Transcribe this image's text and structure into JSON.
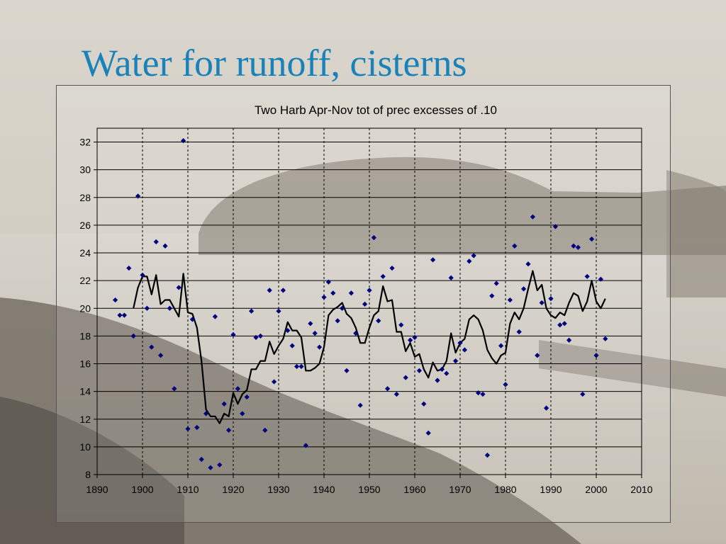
{
  "slide": {
    "title": "Water for runoff, cisterns"
  },
  "colors": {
    "title": "#1a82b8",
    "points": "#000080",
    "line": "#000000",
    "gridlines": "#000000"
  },
  "chart_data": {
    "type": "scatter",
    "title": "Two Harb Apr-Nov tot of prec excesses of .10",
    "xlabel": "",
    "ylabel": "",
    "xlim": [
      1890,
      2010
    ],
    "ylim": [
      8,
      33
    ],
    "xticks": [
      1890,
      1900,
      1910,
      1920,
      1930,
      1940,
      1950,
      1960,
      1970,
      1980,
      1990,
      2000,
      2010
    ],
    "yticks": [
      8,
      10,
      12,
      14,
      16,
      18,
      20,
      22,
      24,
      26,
      28,
      30,
      32
    ],
    "grid": {
      "horizontal": "solid",
      "vertical": "dashed"
    },
    "legend": "none",
    "series": [
      {
        "kind": "scatter",
        "marker": "diamond",
        "points": [
          [
            1894,
            20.6
          ],
          [
            1895,
            19.5
          ],
          [
            1896,
            19.5
          ],
          [
            1897,
            22.9
          ],
          [
            1898,
            18.0
          ],
          [
            1899,
            28.1
          ],
          [
            1900,
            22.4
          ],
          [
            1901,
            20.0
          ],
          [
            1902,
            17.2
          ],
          [
            1903,
            24.8
          ],
          [
            1904,
            16.6
          ],
          [
            1905,
            24.5
          ],
          [
            1906,
            20.0
          ],
          [
            1907,
            14.2
          ],
          [
            1908,
            21.5
          ],
          [
            1909,
            32.1
          ],
          [
            1910,
            11.3
          ],
          [
            1911,
            19.2
          ],
          [
            1912,
            11.4
          ],
          [
            1913,
            9.1
          ],
          [
            1914,
            12.4
          ],
          [
            1915,
            8.5
          ],
          [
            1916,
            19.4
          ],
          [
            1917,
            8.7
          ],
          [
            1918,
            13.1
          ],
          [
            1919,
            11.2
          ],
          [
            1920,
            18.1
          ],
          [
            1921,
            14.2
          ],
          [
            1922,
            12.4
          ],
          [
            1923,
            13.6
          ],
          [
            1924,
            19.8
          ],
          [
            1925,
            17.9
          ],
          [
            1926,
            18.0
          ],
          [
            1927,
            11.2
          ],
          [
            1928,
            21.3
          ],
          [
            1929,
            14.7
          ],
          [
            1930,
            19.8
          ],
          [
            1931,
            21.3
          ],
          [
            1932,
            18.4
          ],
          [
            1933,
            17.3
          ],
          [
            1934,
            15.8
          ],
          [
            1935,
            15.8
          ],
          [
            1936,
            10.1
          ],
          [
            1937,
            18.9
          ],
          [
            1938,
            18.2
          ],
          [
            1939,
            17.2
          ],
          [
            1940,
            20.8
          ],
          [
            1941,
            21.9
          ],
          [
            1942,
            21.1
          ],
          [
            1943,
            19.1
          ],
          [
            1944,
            20.0
          ],
          [
            1945,
            15.5
          ],
          [
            1946,
            21.1
          ],
          [
            1947,
            18.2
          ],
          [
            1948,
            13.0
          ],
          [
            1949,
            20.3
          ],
          [
            1950,
            21.3
          ],
          [
            1951,
            25.1
          ],
          [
            1952,
            19.1
          ],
          [
            1953,
            22.3
          ],
          [
            1954,
            14.2
          ],
          [
            1955,
            22.9
          ],
          [
            1956,
            13.8
          ],
          [
            1957,
            18.8
          ],
          [
            1958,
            15.0
          ],
          [
            1959,
            17.7
          ],
          [
            1960,
            17.9
          ],
          [
            1961,
            15.5
          ],
          [
            1962,
            13.1
          ],
          [
            1963,
            11.0
          ],
          [
            1964,
            23.5
          ],
          [
            1965,
            14.8
          ],
          [
            1966,
            15.6
          ],
          [
            1967,
            15.3
          ],
          [
            1968,
            22.2
          ],
          [
            1969,
            16.2
          ],
          [
            1970,
            17.5
          ],
          [
            1971,
            17.0
          ],
          [
            1972,
            23.4
          ],
          [
            1973,
            23.8
          ],
          [
            1974,
            13.9
          ],
          [
            1975,
            13.8
          ],
          [
            1976,
            9.4
          ],
          [
            1977,
            20.9
          ],
          [
            1978,
            21.8
          ],
          [
            1979,
            17.3
          ],
          [
            1980,
            14.5
          ],
          [
            1981,
            20.6
          ],
          [
            1982,
            24.5
          ],
          [
            1983,
            18.3
          ],
          [
            1984,
            21.4
          ],
          [
            1985,
            23.2
          ],
          [
            1986,
            26.6
          ],
          [
            1987,
            16.6
          ],
          [
            1988,
            20.4
          ],
          [
            1989,
            12.8
          ],
          [
            1990,
            20.7
          ],
          [
            1991,
            25.9
          ],
          [
            1992,
            18.8
          ],
          [
            1993,
            18.9
          ],
          [
            1994,
            17.7
          ],
          [
            1995,
            24.5
          ],
          [
            1996,
            24.4
          ],
          [
            1997,
            13.8
          ],
          [
            1998,
            22.3
          ],
          [
            1999,
            25.0
          ],
          [
            2000,
            16.6
          ],
          [
            2001,
            22.1
          ],
          [
            2002,
            17.8
          ]
        ]
      },
      {
        "kind": "line",
        "points": [
          [
            1898,
            20.0
          ],
          [
            1899,
            21.5
          ],
          [
            1900,
            22.3
          ],
          [
            1901,
            22.3
          ],
          [
            1902,
            21.0
          ],
          [
            1903,
            22.4
          ],
          [
            1904,
            20.3
          ],
          [
            1905,
            20.6
          ],
          [
            1906,
            20.6
          ],
          [
            1907,
            20.0
          ],
          [
            1908,
            19.4
          ],
          [
            1909,
            22.5
          ],
          [
            1910,
            19.7
          ],
          [
            1911,
            19.6
          ],
          [
            1912,
            18.6
          ],
          [
            1913,
            16.2
          ],
          [
            1914,
            12.7
          ],
          [
            1915,
            12.2
          ],
          [
            1916,
            12.2
          ],
          [
            1917,
            11.7
          ],
          [
            1918,
            12.4
          ],
          [
            1919,
            12.2
          ],
          [
            1920,
            13.9
          ],
          [
            1921,
            13.1
          ],
          [
            1922,
            13.8
          ],
          [
            1923,
            14.1
          ],
          [
            1924,
            15.6
          ],
          [
            1925,
            15.6
          ],
          [
            1926,
            16.2
          ],
          [
            1927,
            16.2
          ],
          [
            1928,
            17.6
          ],
          [
            1929,
            16.7
          ],
          [
            1930,
            17.3
          ],
          [
            1931,
            17.8
          ],
          [
            1932,
            19.0
          ],
          [
            1933,
            18.4
          ],
          [
            1934,
            18.4
          ],
          [
            1935,
            17.9
          ],
          [
            1936,
            15.5
          ],
          [
            1937,
            15.5
          ],
          [
            1938,
            15.7
          ],
          [
            1939,
            16.0
          ],
          [
            1940,
            17.2
          ],
          [
            1941,
            19.5
          ],
          [
            1942,
            19.9
          ],
          [
            1943,
            20.1
          ],
          [
            1944,
            20.4
          ],
          [
            1945,
            19.6
          ],
          [
            1946,
            19.3
          ],
          [
            1947,
            18.6
          ],
          [
            1948,
            17.5
          ],
          [
            1949,
            17.5
          ],
          [
            1950,
            18.6
          ],
          [
            1951,
            19.5
          ],
          [
            1952,
            19.8
          ],
          [
            1953,
            21.6
          ],
          [
            1954,
            20.5
          ],
          [
            1955,
            20.6
          ],
          [
            1956,
            18.3
          ],
          [
            1957,
            18.3
          ],
          [
            1958,
            16.9
          ],
          [
            1959,
            17.5
          ],
          [
            1960,
            16.5
          ],
          [
            1961,
            16.7
          ],
          [
            1962,
            15.6
          ],
          [
            1963,
            15.0
          ],
          [
            1964,
            16.1
          ],
          [
            1965,
            15.5
          ],
          [
            1966,
            15.6
          ],
          [
            1967,
            16.2
          ],
          [
            1968,
            18.2
          ],
          [
            1969,
            16.8
          ],
          [
            1970,
            17.5
          ],
          [
            1971,
            17.8
          ],
          [
            1972,
            19.2
          ],
          [
            1973,
            19.5
          ],
          [
            1974,
            19.2
          ],
          [
            1975,
            18.4
          ],
          [
            1976,
            17.0
          ],
          [
            1977,
            16.4
          ],
          [
            1978,
            16.0
          ],
          [
            1979,
            16.6
          ],
          [
            1980,
            16.8
          ],
          [
            1981,
            18.9
          ],
          [
            1982,
            19.7
          ],
          [
            1983,
            19.2
          ],
          [
            1984,
            20.0
          ],
          [
            1985,
            21.4
          ],
          [
            1986,
            22.7
          ],
          [
            1987,
            21.3
          ],
          [
            1988,
            21.7
          ],
          [
            1989,
            20.0
          ],
          [
            1990,
            19.5
          ],
          [
            1991,
            19.3
          ],
          [
            1992,
            19.7
          ],
          [
            1993,
            19.5
          ],
          [
            1994,
            20.4
          ],
          [
            1995,
            21.1
          ],
          [
            1996,
            20.9
          ],
          [
            1997,
            19.8
          ],
          [
            1998,
            20.5
          ],
          [
            1999,
            22.0
          ],
          [
            2000,
            20.5
          ],
          [
            2001,
            20.0
          ],
          [
            2002,
            20.7
          ]
        ]
      }
    ]
  }
}
